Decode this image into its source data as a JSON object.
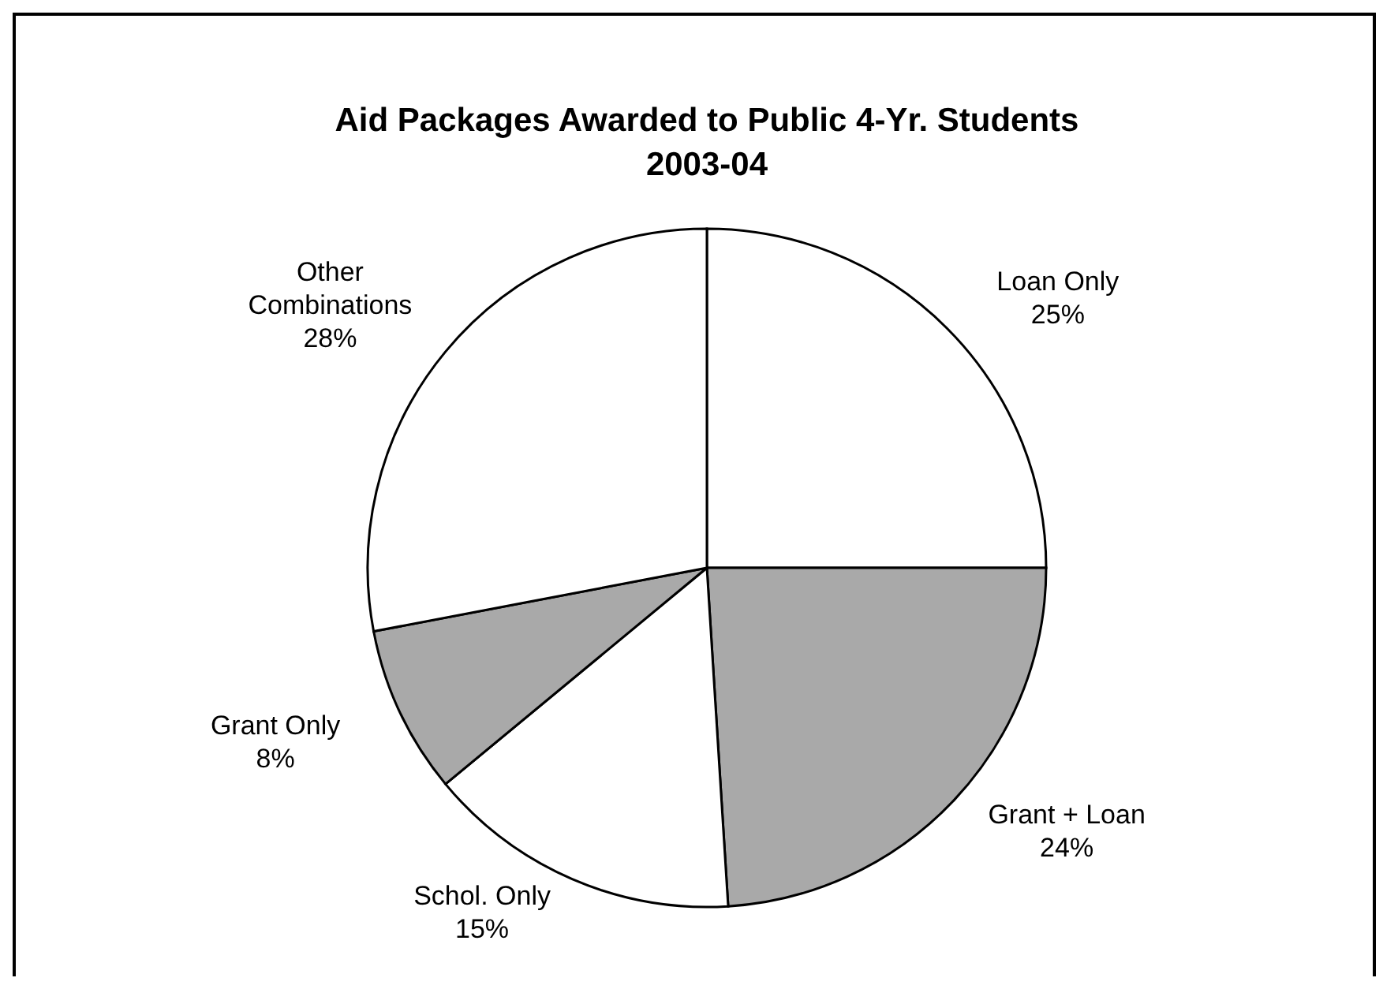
{
  "chart_data": {
    "type": "pie",
    "title": "Aid Packages Awarded to Public 4-Yr. Students",
    "subtitle": "2003-04",
    "categories": [
      "Loan Only",
      "Grant + Loan",
      "Schol. Only",
      "Grant Only",
      "Other Combinations"
    ],
    "values": [
      25,
      24,
      15,
      8,
      28
    ],
    "colors": [
      "#ffffff",
      "#a9a9a9",
      "#ffffff",
      "#a9a9a9",
      "#ffffff"
    ],
    "value_labels": [
      "25%",
      "24%",
      "15%",
      "8%",
      "28%"
    ]
  }
}
